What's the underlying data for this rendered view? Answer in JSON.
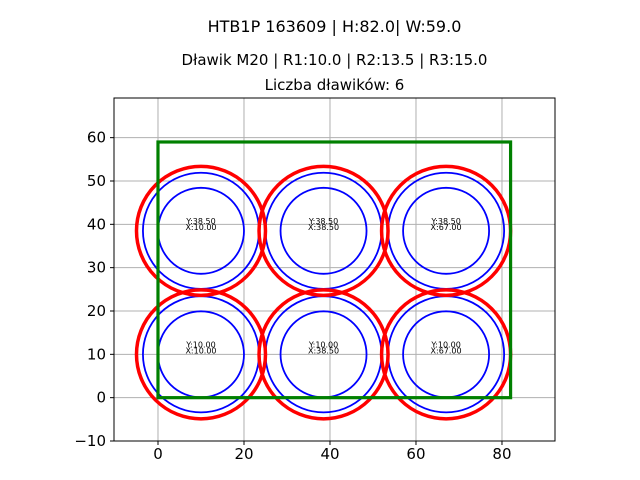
{
  "chart_data": {
    "type": "scatter",
    "title": "HTB1P 163609 | H:82.0| W:59.0",
    "subtitle_line1": "Dławik M20 | R1:10.0 | R2:13.5 | R3:15.0",
    "subtitle_line2": "Liczba dławików: 6",
    "xlabel": "",
    "ylabel": "",
    "xlim": [
      -10.23,
      92.33
    ],
    "ylim": [
      -10.0,
      69.15
    ],
    "xticks": [
      0,
      20,
      40,
      60,
      80
    ],
    "yticks": [
      -10,
      0,
      10,
      20,
      30,
      40,
      50,
      60
    ],
    "grid": true,
    "legend": false,
    "colors": {
      "background": "#ffffff",
      "grid": "#b0b0b0",
      "spine": "#000000",
      "tick_label": "#000000",
      "annotation": "#000000",
      "enclosure": "#008000",
      "gland_blue": "#0000ff",
      "gland_red": "#ff0000"
    },
    "enclosure_rect": {
      "x": 0.0,
      "y": 0.0,
      "width": 82.0,
      "height": 59.0,
      "lw": 3.2
    },
    "gland_count": 6,
    "gland_radii": [
      {
        "name": "R1",
        "value": 10.0,
        "color": "#0000ff",
        "lw": 1.8
      },
      {
        "name": "R2",
        "value": 13.5,
        "color": "#0000ff",
        "lw": 1.8
      },
      {
        "name": "R3",
        "value": 15.0,
        "color": "#ff0000",
        "lw": 3.5
      }
    ],
    "glands": [
      {
        "x": 10.0,
        "y": 38.5,
        "label_lines": [
          "Y:38.50",
          "X:10.00"
        ]
      },
      {
        "x": 38.5,
        "y": 38.5,
        "label_lines": [
          "Y:38.50",
          "X:38.50"
        ]
      },
      {
        "x": 67.0,
        "y": 38.5,
        "label_lines": [
          "Y:38.50",
          "X:67.00"
        ]
      },
      {
        "x": 10.0,
        "y": 10.0,
        "label_lines": [
          "Y:10.00",
          "X:10.00"
        ]
      },
      {
        "x": 38.5,
        "y": 10.0,
        "label_lines": [
          "Y:10.00",
          "X:38.50"
        ]
      },
      {
        "x": 67.0,
        "y": 10.0,
        "label_lines": [
          "Y:10.00",
          "X:67.00"
        ]
      }
    ]
  }
}
